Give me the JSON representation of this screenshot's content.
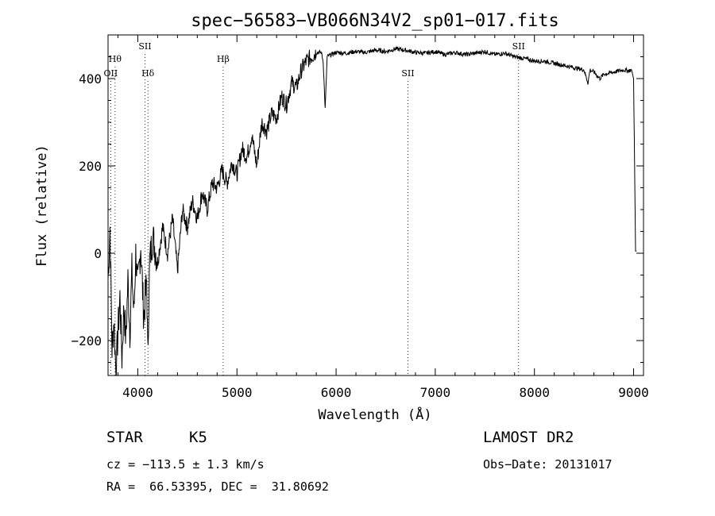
{
  "chart_data": {
    "type": "line",
    "title": "spec−56583−VB066N34V2_sp01−017.fits",
    "xlabel": "Wavelength (Å)",
    "ylabel": "Flux (relative)",
    "xlim": [
      3700,
      9100
    ],
    "ylim": [
      -280,
      500
    ],
    "xticks": [
      4000,
      5000,
      6000,
      7000,
      8000,
      9000
    ],
    "xtick_labels": [
      "4000",
      "5000",
      "6000",
      "7000",
      "8000",
      "9000"
    ],
    "yticks": [
      -200,
      0,
      200,
      400
    ],
    "ytick_labels": [
      "−200",
      "0",
      "200",
      "400"
    ],
    "line_color": "#000000",
    "grid": false,
    "series": [
      {
        "x": [
          3700,
          3720,
          3740,
          3760,
          3780,
          3800,
          3820,
          3840,
          3860,
          3880,
          3900,
          3920,
          3940,
          3960,
          3980,
          4000,
          4030,
          4060,
          4090,
          4100,
          4120,
          4150,
          4200,
          4250,
          4300,
          4350,
          4400,
          4450,
          4500,
          4550,
          4600,
          4650,
          4700,
          4750,
          4800,
          4850,
          4900,
          4950,
          5000,
          5050,
          5100,
          5150,
          5200,
          5250,
          5300,
          5350,
          5400,
          5450,
          5500,
          5550,
          5600,
          5650,
          5700,
          5750,
          5800,
          5850,
          5870,
          5890,
          5910,
          5950,
          6000,
          6100,
          6200,
          6300,
          6400,
          6500,
          6600,
          6700,
          6800,
          6900,
          7000,
          7100,
          7200,
          7300,
          7400,
          7500,
          7600,
          7700,
          7800,
          7900,
          8000,
          8100,
          8200,
          8300,
          8400,
          8500,
          8540,
          8560,
          8600,
          8660,
          8700,
          8800,
          8900,
          8950,
          8980,
          9000,
          9010,
          9020,
          9030
        ],
        "y": [
          -60,
          60,
          -220,
          -150,
          -280,
          -180,
          -100,
          -240,
          -120,
          -200,
          -60,
          -180,
          -40,
          -140,
          0,
          -80,
          20,
          -150,
          -60,
          -230,
          -20,
          40,
          -20,
          60,
          0,
          80,
          -40,
          100,
          60,
          120,
          80,
          140,
          100,
          160,
          150,
          190,
          160,
          210,
          180,
          240,
          220,
          270,
          200,
          300,
          280,
          320,
          310,
          360,
          340,
          390,
          380,
          420,
          440,
          450,
          460,
          460,
          440,
          330,
          450,
          455,
          460,
          458,
          462,
          460,
          465,
          462,
          468,
          465,
          460,
          458,
          462,
          455,
          460,
          455,
          458,
          462,
          455,
          458,
          450,
          446,
          440,
          440,
          435,
          430,
          425,
          420,
          390,
          420,
          415,
          400,
          410,
          415,
          420,
          418,
          420,
          400,
          200,
          5,
          5
        ]
      }
    ],
    "lines": [
      {
        "x": 3727,
        "label": "OII",
        "row": "lower"
      },
      {
        "x": 3771,
        "label": "Hθ",
        "row": "upper"
      },
      {
        "x": 4072,
        "label": "SII",
        "row": "top"
      },
      {
        "x": 4102,
        "label": "Hδ",
        "row": "lower"
      },
      {
        "x": 4861,
        "label": "Hβ",
        "row": "upper"
      },
      {
        "x": 6724,
        "label": "SII",
        "row": "lower"
      },
      {
        "x": 7840,
        "label": "SII",
        "row": "top"
      }
    ]
  },
  "info": {
    "object_class": "STAR",
    "subclass": "K5",
    "survey": "LAMOST DR2",
    "cz": "cz = −113.5 ± 1.3 km/s",
    "obs_date": "Obs−Date: 20131017",
    "coords": "RA =  66.53395, DEC =  31.80692"
  }
}
